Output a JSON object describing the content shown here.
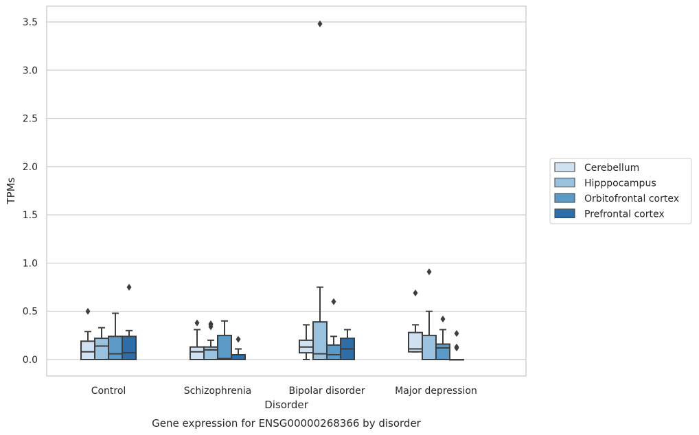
{
  "chart_data": {
    "type": "box",
    "title": "",
    "caption": "Gene expression for ENSG00000268366 by disorder",
    "xlabel": "Disorder",
    "ylabel": "TPMs",
    "ylim": [
      -0.17,
      3.65
    ],
    "yticks": [
      0.0,
      0.5,
      1.0,
      1.5,
      2.0,
      2.5,
      3.0,
      3.5
    ],
    "ytick_labels": [
      "0.0",
      "0.5",
      "1.0",
      "1.5",
      "2.0",
      "2.5",
      "3.0",
      "3.5"
    ],
    "grid": "horizontal",
    "legend_position": "right",
    "categories": [
      "Control",
      "Schizophrenia",
      "Bipolar disorder",
      "Major depression"
    ],
    "series": [
      {
        "name": "Cerebellum",
        "color": "#d0e1f2",
        "boxes": [
          {
            "whisker_low": 0.0,
            "q1": 0.0,
            "median": 0.08,
            "q3": 0.19,
            "whisker_high": 0.29,
            "outliers": [
              0.5
            ]
          },
          {
            "whisker_low": 0.0,
            "q1": 0.0,
            "median": 0.08,
            "q3": 0.13,
            "whisker_high": 0.31,
            "outliers": [
              0.38
            ]
          },
          {
            "whisker_low": 0.0,
            "q1": 0.07,
            "median": 0.13,
            "q3": 0.2,
            "whisker_high": 0.36,
            "outliers": []
          },
          {
            "whisker_low": 0.08,
            "q1": 0.08,
            "median": 0.11,
            "q3": 0.28,
            "whisker_high": 0.36,
            "outliers": [
              0.69
            ]
          }
        ]
      },
      {
        "name": "Hipppocampus",
        "color": "#9ac2de",
        "boxes": [
          {
            "whisker_low": 0.0,
            "q1": 0.0,
            "median": 0.14,
            "q3": 0.22,
            "whisker_high": 0.33,
            "outliers": []
          },
          {
            "whisker_low": 0.0,
            "q1": 0.0,
            "median": 0.1,
            "q3": 0.13,
            "whisker_high": 0.2,
            "outliers": [
              0.34,
              0.36,
              0.37
            ]
          },
          {
            "whisker_low": 0.0,
            "q1": 0.0,
            "median": 0.06,
            "q3": 0.39,
            "whisker_high": 0.75,
            "outliers": [
              3.48
            ]
          },
          {
            "whisker_low": 0.0,
            "q1": 0.0,
            "median": 0.0,
            "q3": 0.25,
            "whisker_high": 0.5,
            "outliers": [
              0.91
            ]
          }
        ]
      },
      {
        "name": "Orbitofrontal cortex",
        "color": "#5b9ac7",
        "boxes": [
          {
            "whisker_low": 0.0,
            "q1": 0.0,
            "median": 0.06,
            "q3": 0.24,
            "whisker_high": 0.48,
            "outliers": []
          },
          {
            "whisker_low": 0.0,
            "q1": 0.0,
            "median": 0.01,
            "q3": 0.25,
            "whisker_high": 0.4,
            "outliers": []
          },
          {
            "whisker_low": 0.0,
            "q1": 0.0,
            "median": 0.05,
            "q3": 0.15,
            "whisker_high": 0.24,
            "outliers": [
              0.6
            ]
          },
          {
            "whisker_low": 0.0,
            "q1": 0.0,
            "median": 0.12,
            "q3": 0.16,
            "whisker_high": 0.31,
            "outliers": [
              0.42
            ]
          }
        ]
      },
      {
        "name": "Prefrontal cortex",
        "color": "#2f6da9",
        "boxes": [
          {
            "whisker_low": 0.0,
            "q1": 0.0,
            "median": 0.07,
            "q3": 0.24,
            "whisker_high": 0.3,
            "outliers": [
              0.75
            ]
          },
          {
            "whisker_low": 0.0,
            "q1": 0.0,
            "median": 0.0,
            "q3": 0.05,
            "whisker_high": 0.11,
            "outliers": [
              0.21
            ]
          },
          {
            "whisker_low": 0.0,
            "q1": 0.0,
            "median": 0.11,
            "q3": 0.22,
            "whisker_high": 0.31,
            "outliers": []
          },
          {
            "whisker_low": 0.0,
            "q1": 0.0,
            "median": 0.0,
            "q3": 0.0,
            "whisker_high": 0.0,
            "outliers": [
              0.12,
              0.13,
              0.27
            ]
          }
        ]
      }
    ]
  }
}
